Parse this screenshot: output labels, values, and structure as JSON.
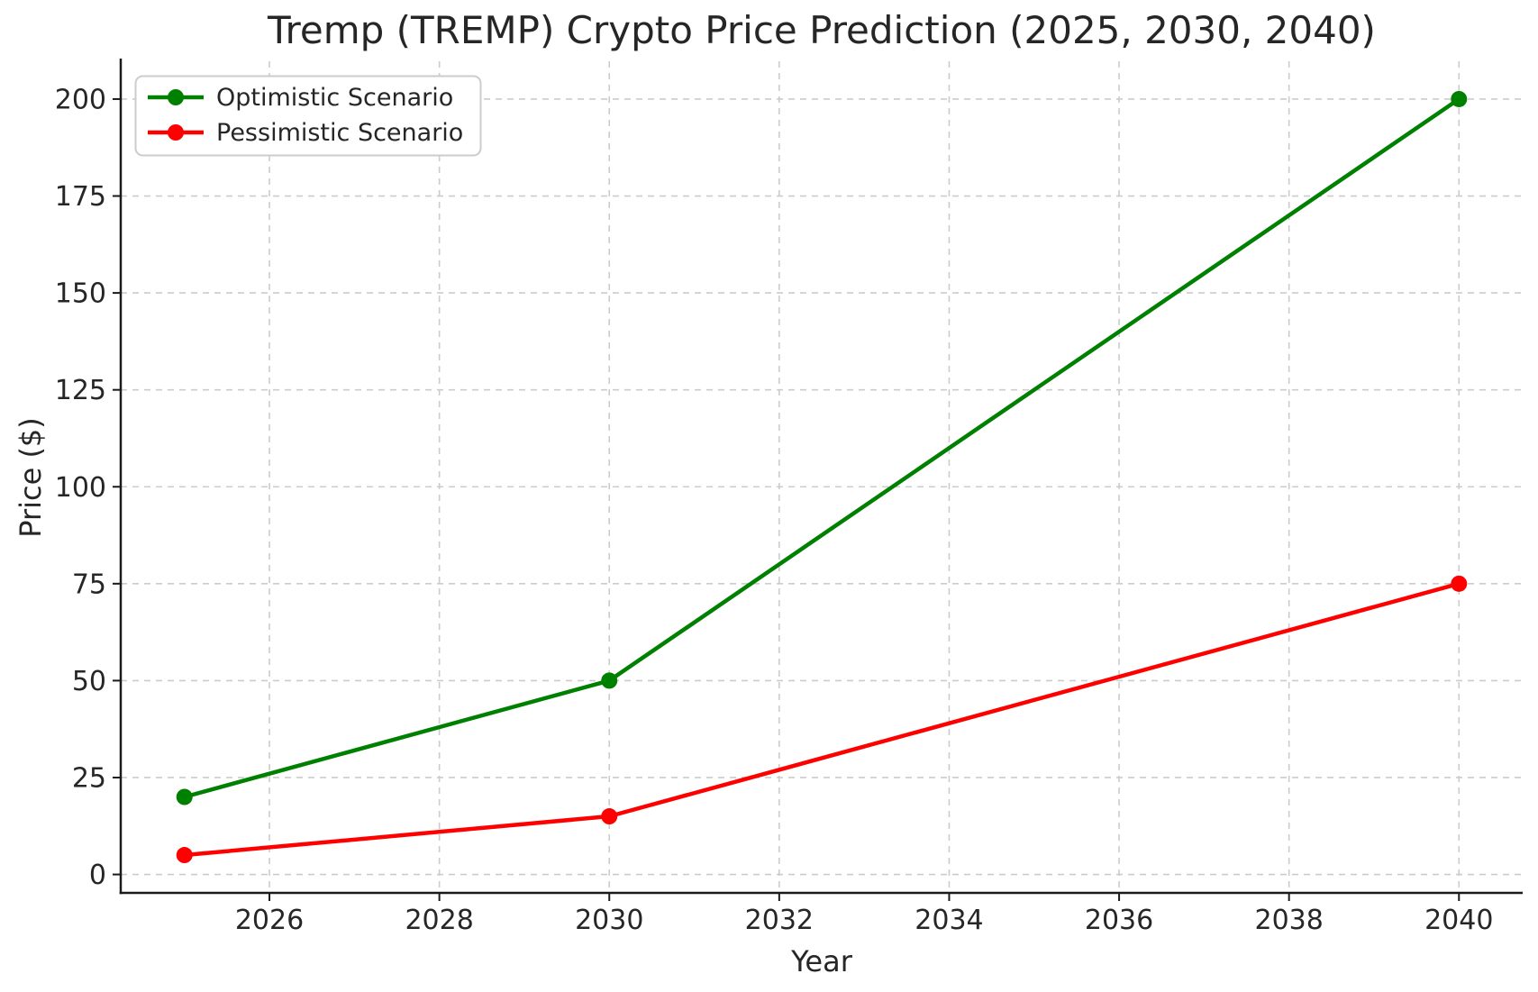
{
  "figure": {
    "background": "#ffffff"
  },
  "chart_data": {
    "type": "line",
    "title": "Tremp (TREMP) Crypto Price Prediction (2025, 2030, 2040)",
    "xlabel": "Year",
    "ylabel": "Price ($)",
    "x": [
      2025,
      2030,
      2040
    ],
    "series": [
      {
        "name": "Optimistic Scenario",
        "color": "#008000",
        "values": [
          20,
          50,
          200
        ]
      },
      {
        "name": "Pessimistic Scenario",
        "color": "#ff0000",
        "values": [
          5,
          15,
          75
        ]
      }
    ],
    "xticks": [
      2026,
      2028,
      2030,
      2032,
      2034,
      2036,
      2038,
      2040
    ],
    "yticks": [
      0,
      25,
      50,
      75,
      100,
      125,
      150,
      175,
      200
    ],
    "xlim": [
      2024.25,
      2040.75
    ],
    "ylim": [
      -4.75,
      209.75
    ],
    "grid": true,
    "grid_line_style": "dashed",
    "legend_position": "upper-left",
    "marker": "circle",
    "colors": {
      "grid": "#cccccc",
      "text": "#262626",
      "axis": "#1a1a1a",
      "legend_border": "#cccccc",
      "legend_background": "#ffffff"
    }
  }
}
